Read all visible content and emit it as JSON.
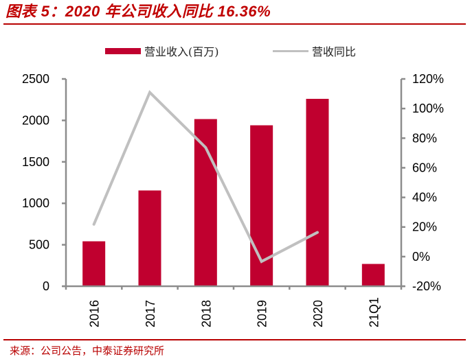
{
  "title": "图表 5：2020 年公司收入同比 16.36%",
  "source": "来源：公司公告，中泰证券研究所",
  "colors": {
    "title": "#C00000",
    "rule": "#B80000",
    "bar": "#C0002F",
    "line": "#C0C0C0",
    "axis": "#8C8C8C"
  },
  "legend": [
    {
      "label": "营业收入(百万)",
      "type": "bar"
    },
    {
      "label": "营收同比",
      "type": "line"
    }
  ],
  "chart_data": {
    "type": "bar+line",
    "title": "图表 5：2020 年公司收入同比 16.36%",
    "categories": [
      "2016",
      "2017",
      "2018",
      "2019",
      "2020",
      "21Q1"
    ],
    "series": [
      {
        "name": "营业收入(百万)",
        "type": "bar",
        "axis": "left",
        "values": [
          542,
          1155,
          2016,
          1941,
          2260,
          269
        ]
      },
      {
        "name": "营收同比",
        "type": "line",
        "axis": "right",
        "unit": "%",
        "values": [
          21.8,
          110.9,
          73.7,
          -3.3,
          16.36,
          null
        ]
      }
    ],
    "y_left": {
      "label": "",
      "ylim": [
        0,
        2500
      ],
      "ticks": [
        0,
        500,
        1000,
        1500,
        2000,
        2500
      ]
    },
    "y_right": {
      "label": "",
      "ylim": [
        -20,
        120
      ],
      "ticks": [
        "-20%",
        "0%",
        "20%",
        "40%",
        "60%",
        "80%",
        "100%",
        "120%"
      ]
    },
    "xlabel": "",
    "grid": false,
    "legend_position": "top",
    "x_tick_rotation": -90
  }
}
